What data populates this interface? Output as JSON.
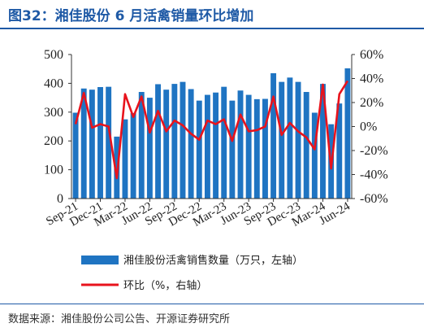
{
  "title": "图32：湘佳股份 6 月活禽销量环比增加",
  "source": "数据来源：湘佳股份公司公告、开源证券研究所",
  "colors": {
    "bar": "#1f74c2",
    "line": "#e8131c",
    "accent": "#1f5aa6"
  },
  "chart_data": {
    "type": "bar+line",
    "categories": [
      "Sep-21",
      "Oct-21",
      "Nov-21",
      "Dec-21",
      "Jan-22",
      "Feb-22",
      "Mar-22",
      "Apr-22",
      "May-22",
      "Jun-22",
      "Jul-22",
      "Aug-22",
      "Sep-22",
      "Oct-22",
      "Nov-22",
      "Dec-22",
      "Jan-23",
      "Feb-23",
      "Mar-23",
      "Apr-23",
      "May-23",
      "Jun-23",
      "Jul-23",
      "Aug-23",
      "Sep-23",
      "Oct-23",
      "Nov-23",
      "Dec-23",
      "Jan-24",
      "Feb-24",
      "Mar-24",
      "Apr-24",
      "May-24",
      "Jun-24"
    ],
    "x_tick_labels": [
      "Sep-21",
      "Dec-21",
      "Mar-22",
      "Jun-22",
      "Sep-22",
      "Dec-22",
      "Mar-23",
      "Jun-23",
      "Sep-23",
      "Dec-23",
      "Mar-24",
      "Jun-24"
    ],
    "series": [
      {
        "name": "湘佳股份活禽销售数量（万只，左轴）",
        "axis": "left",
        "type": "bar",
        "values": [
          298,
          382,
          378,
          387,
          388,
          215,
          275,
          297,
          370,
          350,
          397,
          378,
          398,
          405,
          380,
          340,
          360,
          368,
          388,
          340,
          375,
          360,
          345,
          346,
          435,
          405,
          420,
          405,
          370,
          298,
          398,
          258,
          330,
          452
        ]
      },
      {
        "name": "环比（%，右轴）",
        "axis": "right",
        "type": "line",
        "values": [
          2,
          28,
          -1,
          2,
          0,
          -43,
          27,
          8,
          25,
          -5,
          13,
          -4,
          5,
          1,
          -6,
          -11,
          5,
          2,
          6,
          -12,
          10,
          -4,
          -3,
          0,
          25,
          -7,
          3,
          -4,
          -9,
          -19,
          35,
          -35,
          27,
          38
        ]
      }
    ],
    "y_left": {
      "min": 0,
      "max": 500,
      "ticks": [
        0,
        100,
        200,
        300,
        400,
        500
      ]
    },
    "y_right": {
      "min": -60,
      "max": 60,
      "ticks": [
        "-60%",
        "-40%",
        "-20%",
        "0%",
        "20%",
        "40%",
        "60%"
      ]
    },
    "legend": [
      {
        "label": "湘佳股份活禽销售数量（万只，左轴）",
        "kind": "bar"
      },
      {
        "label": "环比（%，右轴）",
        "kind": "line"
      }
    ]
  }
}
